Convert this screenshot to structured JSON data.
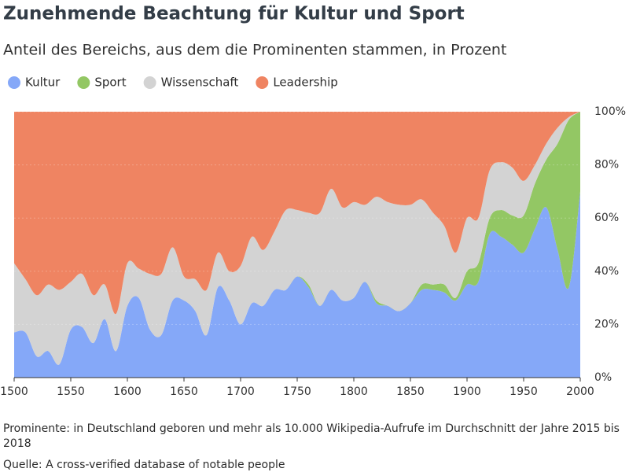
{
  "chart_data": {
    "type": "stacked_area",
    "title": "Zunehmende Beachtung für Kultur und Sport",
    "subtitle": "Anteil des Bereichs, aus dem die Prominenten stammen, in Prozent",
    "note": "Prominente: in Deutschland geboren und mehr als 10.000 Wikipedia-Aufrufe im Durchschnitt der Jahre 2015 bis 2018",
    "source": "Quelle: A cross-verified database of notable people",
    "x": [
      1500,
      1510,
      1520,
      1530,
      1540,
      1550,
      1560,
      1570,
      1580,
      1590,
      1600,
      1610,
      1620,
      1630,
      1640,
      1650,
      1660,
      1670,
      1680,
      1690,
      1700,
      1710,
      1720,
      1730,
      1740,
      1750,
      1760,
      1770,
      1780,
      1790,
      1800,
      1810,
      1820,
      1830,
      1840,
      1850,
      1860,
      1870,
      1880,
      1890,
      1900,
      1910,
      1920,
      1930,
      1940,
      1950,
      1960,
      1970,
      1980,
      1990,
      2000
    ],
    "series": [
      {
        "name": "Kultur",
        "color": "#85a8f8",
        "values": [
          17,
          17,
          8,
          10,
          5,
          18,
          19,
          13,
          22,
          10,
          27,
          30,
          18,
          16,
          29,
          29,
          25,
          16,
          34,
          29,
          20,
          28,
          27,
          33,
          33,
          38,
          34,
          27,
          33,
          29,
          30,
          36,
          28,
          27,
          25,
          28,
          33,
          33,
          32,
          29,
          35,
          36,
          54,
          53,
          50,
          47,
          56,
          64,
          48,
          34,
          70
        ]
      },
      {
        "name": "Sport",
        "color": "#93c764",
        "values": [
          0,
          0,
          0,
          0,
          0,
          0,
          0,
          0,
          0,
          0,
          0,
          0,
          0,
          0,
          0,
          0,
          0,
          0,
          0,
          0,
          0,
          0,
          0,
          0,
          0,
          0,
          1,
          0,
          0,
          0,
          0,
          0,
          1,
          0,
          0,
          0,
          2,
          2,
          3,
          1,
          5,
          7,
          6,
          10,
          11,
          14,
          17,
          18,
          40,
          63,
          30
        ]
      },
      {
        "name": "Wissenschaft",
        "color": "#d3d3d3",
        "values": [
          26,
          20,
          23,
          25,
          28,
          18,
          20,
          18,
          13,
          14,
          16,
          11,
          21,
          23,
          20,
          9,
          12,
          17,
          13,
          11,
          22,
          25,
          21,
          22,
          30,
          25,
          27,
          35,
          38,
          35,
          36,
          29,
          39,
          39,
          40,
          37,
          32,
          27,
          22,
          17,
          20,
          17,
          18,
          18,
          18,
          13,
          7,
          6,
          6,
          1,
          0
        ]
      },
      {
        "name": "Leadership",
        "color": "#ef8462",
        "values": [
          57,
          63,
          69,
          65,
          67,
          64,
          61,
          69,
          65,
          76,
          57,
          59,
          61,
          61,
          51,
          62,
          63,
          67,
          53,
          60,
          58,
          47,
          52,
          45,
          37,
          37,
          38,
          38,
          29,
          36,
          34,
          35,
          32,
          34,
          35,
          35,
          33,
          38,
          43,
          53,
          40,
          40,
          22,
          19,
          21,
          26,
          20,
          12,
          6,
          2,
          0
        ]
      }
    ],
    "xlim": [
      1500,
      2000
    ],
    "xticks": [
      1500,
      1550,
      1600,
      1650,
      1700,
      1750,
      1800,
      1850,
      1900,
      1950,
      2000
    ],
    "ylim": [
      0,
      100
    ],
    "yticks": [
      {
        "value": 0,
        "label": "0%"
      },
      {
        "value": 20,
        "label": "20%"
      },
      {
        "value": 40,
        "label": "40%"
      },
      {
        "value": 60,
        "label": "60%"
      },
      {
        "value": 80,
        "label": "80%"
      },
      {
        "value": 100,
        "label": "100%"
      }
    ],
    "grid": true,
    "legend": "top-left"
  }
}
